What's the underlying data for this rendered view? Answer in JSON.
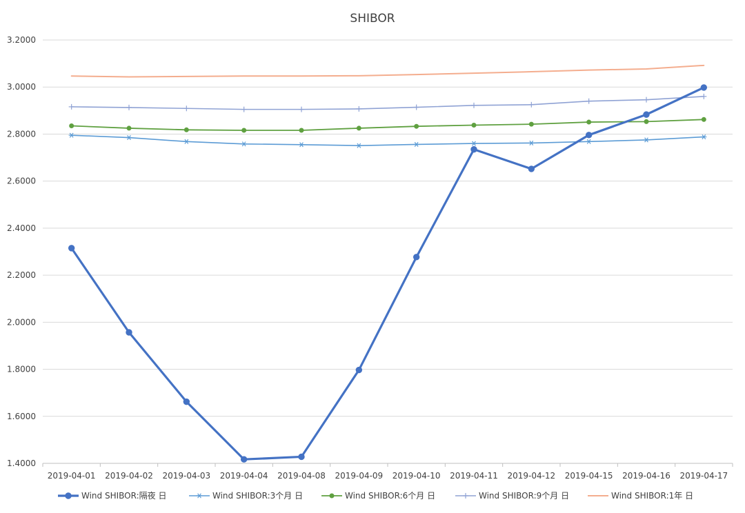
{
  "chart_data": {
    "type": "line",
    "title": "SHIBOR",
    "xlabel": "",
    "ylabel": "",
    "categories": [
      "2019-04-01",
      "2019-04-02",
      "2019-04-03",
      "2019-04-04",
      "2019-04-08",
      "2019-04-09",
      "2019-04-10",
      "2019-04-11",
      "2019-04-12",
      "2019-04-15",
      "2019-04-16",
      "2019-04-17"
    ],
    "ylim": [
      1.4,
      3.2
    ],
    "yticks": [
      "1.4000",
      "1.6000",
      "1.8000",
      "2.0000",
      "2.2000",
      "2.4000",
      "2.6000",
      "2.8000",
      "3.0000",
      "3.2000"
    ],
    "grid": true,
    "legend_position": "bottom",
    "series": [
      {
        "name": "Wind SHIBOR:隔夜 日",
        "color": "#4472c4",
        "marker": "circle",
        "width": 3.2,
        "values": [
          2.315,
          1.957,
          1.662,
          1.417,
          1.428,
          1.797,
          2.277,
          2.735,
          2.652,
          2.796,
          2.883,
          2.998
        ]
      },
      {
        "name": "Wind SHIBOR:3个月 日",
        "color": "#5b9bd5",
        "marker": "asterisk",
        "width": 1.6,
        "values": [
          2.795,
          2.785,
          2.768,
          2.758,
          2.755,
          2.751,
          2.756,
          2.76,
          2.762,
          2.768,
          2.775,
          2.788
        ]
      },
      {
        "name": "Wind SHIBOR:6个月 日",
        "color": "#5fa040",
        "marker": "dot",
        "width": 1.8,
        "values": [
          2.835,
          2.825,
          2.818,
          2.816,
          2.816,
          2.825,
          2.833,
          2.838,
          2.842,
          2.851,
          2.853,
          2.862
        ]
      },
      {
        "name": "Wind SHIBOR:9个月 日",
        "color": "#8fa2d4",
        "marker": "plus",
        "width": 1.6,
        "values": [
          2.916,
          2.913,
          2.909,
          2.905,
          2.905,
          2.907,
          2.914,
          2.922,
          2.925,
          2.94,
          2.946,
          2.96
        ]
      },
      {
        "name": "Wind SHIBOR:1年 日",
        "color": "#f4ad8e",
        "marker": "none",
        "width": 2,
        "values": [
          3.047,
          3.043,
          3.045,
          3.047,
          3.047,
          3.048,
          3.053,
          3.059,
          3.065,
          3.072,
          3.077,
          3.092
        ]
      }
    ]
  }
}
